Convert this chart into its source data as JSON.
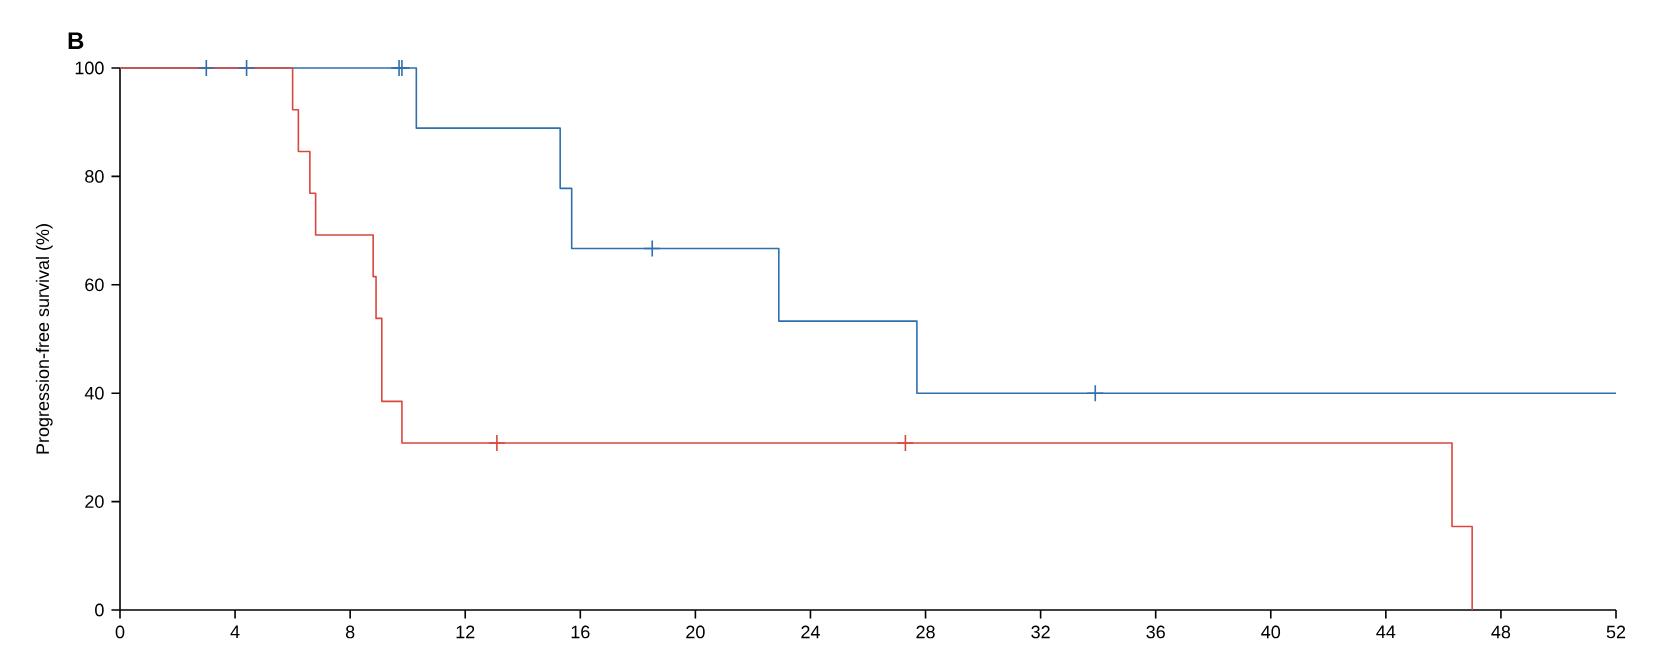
{
  "chart_data": {
    "type": "step",
    "title": "B",
    "ylabel": "Progression-free survival (%)",
    "xlim": [
      0,
      52
    ],
    "ylim": [
      0,
      100
    ],
    "xticks": [
      0,
      4,
      8,
      12,
      16,
      20,
      24,
      28,
      32,
      36,
      40,
      44,
      48,
      52
    ],
    "yticks": [
      0,
      20,
      40,
      60,
      80,
      100
    ],
    "grid": false,
    "series": [
      {
        "color": "#2f6fae",
        "x": [
          0,
          10.3,
          15.3,
          15.7,
          22.9,
          27.7,
          52
        ],
        "values": [
          100,
          88.9,
          77.8,
          66.7,
          53.3,
          40,
          40
        ]
      },
      {
        "color": "#d9473f",
        "x": [
          0,
          6.0,
          6.2,
          6.6,
          6.8,
          8.8,
          8.9,
          9.1,
          9.8,
          46.3,
          47.0
        ],
        "values": [
          100,
          92.3,
          84.6,
          76.9,
          69.2,
          61.5,
          53.8,
          38.5,
          30.8,
          15.4,
          0
        ]
      },
      {
        "type": "scatter",
        "marker": "cross",
        "color": "#2f6fae",
        "x": [
          3.0,
          4.4,
          9.7,
          9.8,
          18.5,
          33.9
        ],
        "values": [
          100,
          100,
          100,
          100,
          66.7,
          40
        ]
      },
      {
        "type": "scatter",
        "marker": "cross",
        "color": "#d9473f",
        "x": [
          13.1,
          27.3
        ],
        "values": [
          30.8,
          30.8
        ]
      }
    ]
  }
}
